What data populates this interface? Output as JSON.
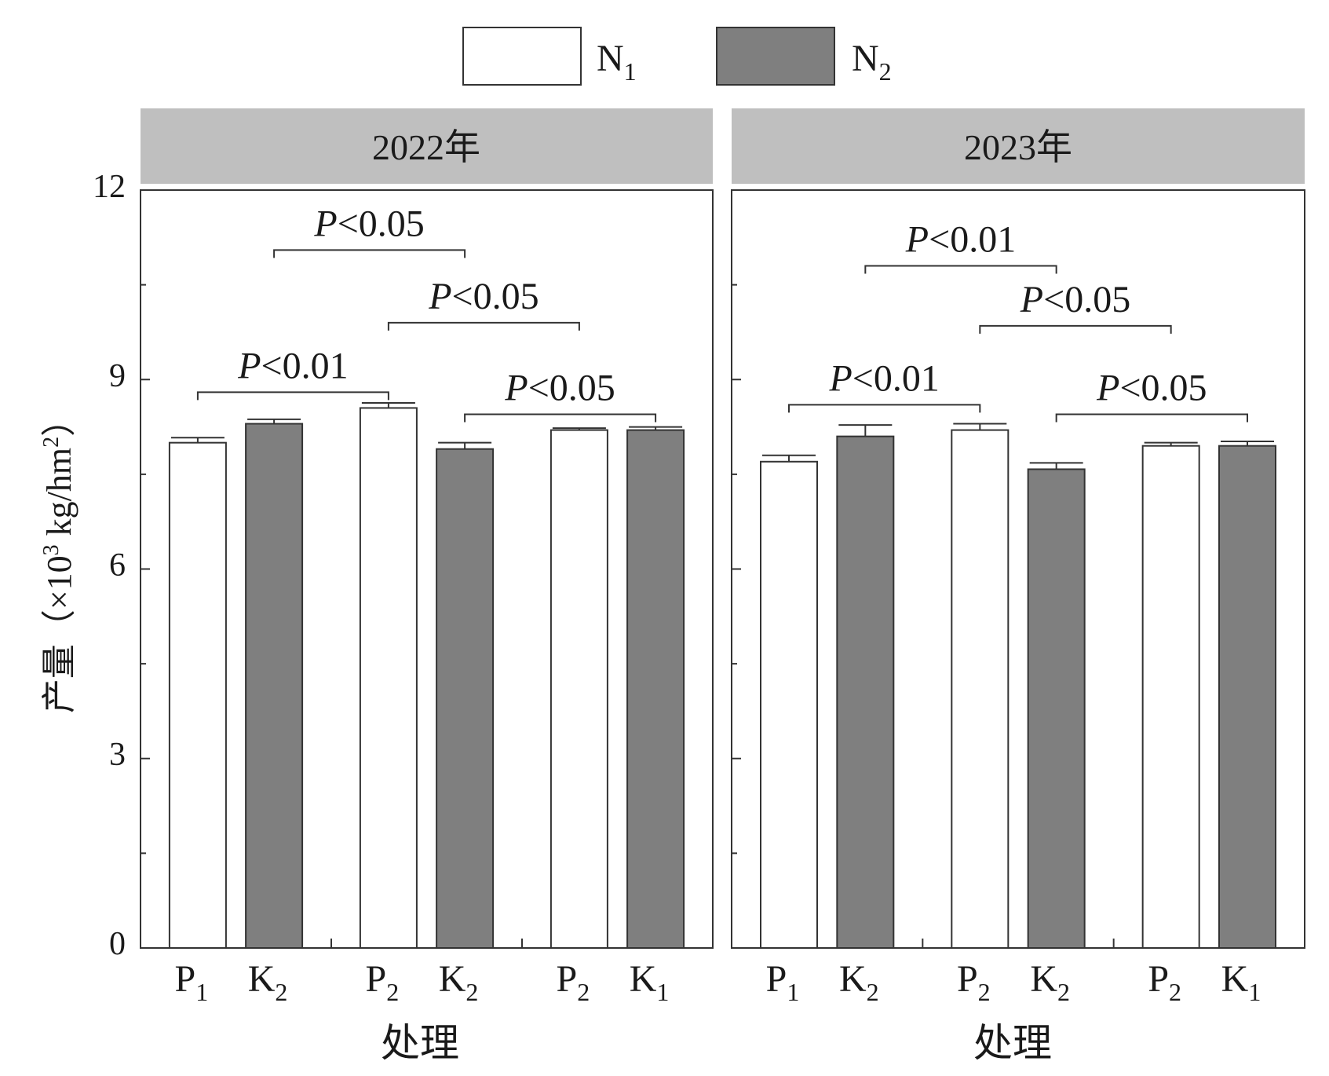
{
  "legend": {
    "items": [
      {
        "label": "N",
        "sub": "1",
        "color": "#ffffff"
      },
      {
        "label": "N",
        "sub": "2",
        "color": "#7f7f7f"
      }
    ]
  },
  "y_axis": {
    "label_main": "产量（×10",
    "label_sup": "3",
    "label_mid": " kg/hm",
    "label_sup2": "2",
    "label_end": "）",
    "ticks": [
      "0",
      "3",
      "6",
      "9",
      "12"
    ]
  },
  "x_axis": {
    "label": "处理"
  },
  "colors": {
    "n1": "#ffffff",
    "n2": "#7f7f7f",
    "strip": "#bfbfbf",
    "axis": "#333333"
  },
  "chart_data": [
    {
      "type": "bar",
      "title": "2022年",
      "ylim": [
        0,
        12
      ],
      "groups": [
        {
          "bars": [
            {
              "label": "P",
              "sub": "1",
              "series": "N1",
              "value": 8.0,
              "err": 0.08
            },
            {
              "label": "K",
              "sub": "2",
              "series": "N2",
              "value": 8.3,
              "err": 0.07
            }
          ]
        },
        {
          "bars": [
            {
              "label": "P",
              "sub": "2",
              "series": "N1",
              "value": 8.55,
              "err": 0.08
            },
            {
              "label": "K",
              "sub": "2",
              "series": "N2",
              "value": 7.9,
              "err": 0.1
            }
          ]
        },
        {
          "bars": [
            {
              "label": "P",
              "sub": "2",
              "series": "N1",
              "value": 8.2,
              "err": 0.03
            },
            {
              "label": "K",
              "sub": "1",
              "series": "N2",
              "value": 8.2,
              "err": 0.05
            }
          ]
        }
      ],
      "annotations": [
        {
          "text_p": "P",
          "text_rest": "<0.05",
          "from_bar": 1,
          "to_bar": 3,
          "y": 11.05
        },
        {
          "text_p": "P",
          "text_rest": "<0.05",
          "from_bar": 2,
          "to_bar": 4,
          "y": 9.9
        },
        {
          "text_p": "P",
          "text_rest": "<0.01",
          "from_bar": 0,
          "to_bar": 2,
          "y": 8.8
        },
        {
          "text_p": "P",
          "text_rest": "<0.05",
          "from_bar": 3,
          "to_bar": 5,
          "y": 8.45
        }
      ]
    },
    {
      "type": "bar",
      "title": "2023年",
      "ylim": [
        0,
        12
      ],
      "groups": [
        {
          "bars": [
            {
              "label": "P",
              "sub": "1",
              "series": "N1",
              "value": 7.7,
              "err": 0.1
            },
            {
              "label": "K",
              "sub": "2",
              "series": "N2",
              "value": 8.1,
              "err": 0.18
            }
          ]
        },
        {
          "bars": [
            {
              "label": "P",
              "sub": "2",
              "series": "N1",
              "value": 8.2,
              "err": 0.1
            },
            {
              "label": "K",
              "sub": "2",
              "series": "N2",
              "value": 7.58,
              "err": 0.1
            }
          ]
        },
        {
          "bars": [
            {
              "label": "P",
              "sub": "2",
              "series": "N1",
              "value": 7.95,
              "err": 0.05
            },
            {
              "label": "K",
              "sub": "1",
              "series": "N2",
              "value": 7.95,
              "err": 0.07
            }
          ]
        }
      ],
      "annotations": [
        {
          "text_p": "P",
          "text_rest": "<0.01",
          "from_bar": 1,
          "to_bar": 3,
          "y": 10.8
        },
        {
          "text_p": "P",
          "text_rest": "<0.05",
          "from_bar": 2,
          "to_bar": 4,
          "y": 9.85
        },
        {
          "text_p": "P",
          "text_rest": "<0.01",
          "from_bar": 0,
          "to_bar": 2,
          "y": 8.6
        },
        {
          "text_p": "P",
          "text_rest": "<0.05",
          "from_bar": 3,
          "to_bar": 5,
          "y": 8.45
        }
      ]
    }
  ]
}
